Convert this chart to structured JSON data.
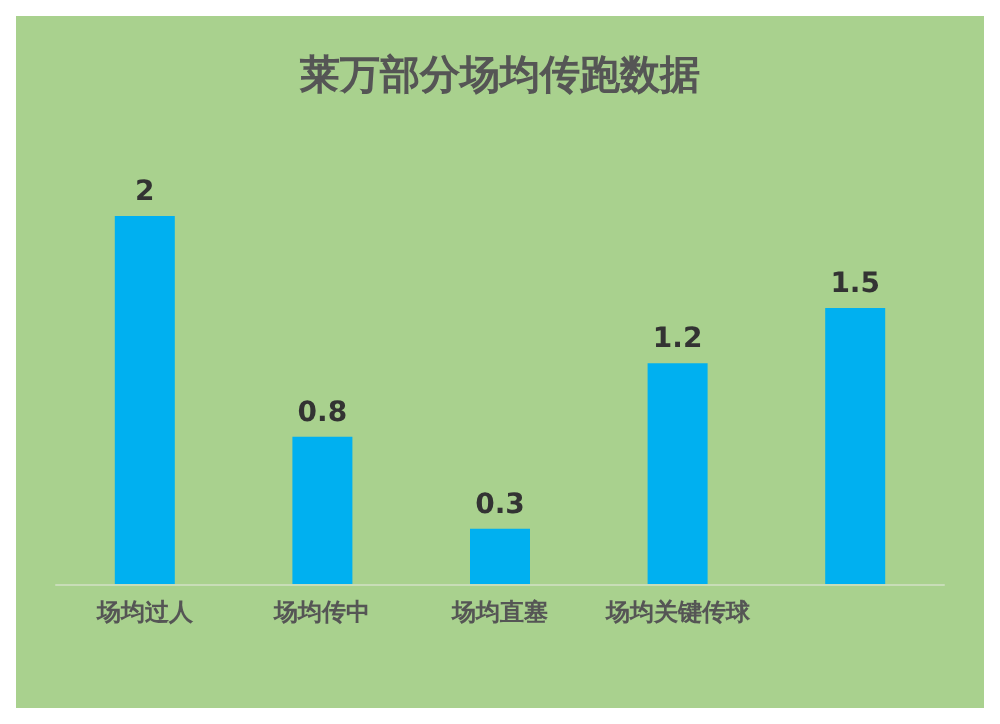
{
  "chart_data": {
    "type": "bar",
    "title": "莱万部分场均传跑数据",
    "categories": [
      "场均过人",
      "场均传中",
      "场均直塞",
      "场均关键传球",
      null
    ],
    "values": [
      2,
      0.8,
      0.3,
      1.2,
      1.5
    ],
    "color": "#00b0f0",
    "data_labels": true,
    "grid": false
  }
}
